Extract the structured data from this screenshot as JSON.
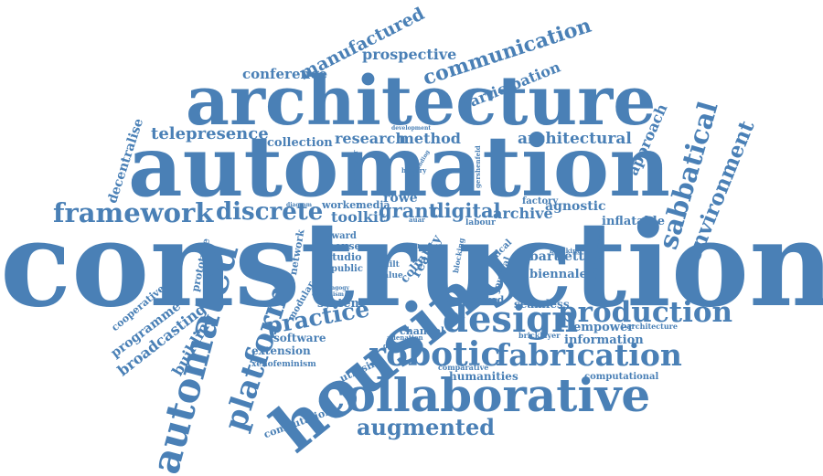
{
  "color": "#4a80b6",
  "words": [
    "construction",
    "automation",
    "architecture",
    "housing",
    "collaborative",
    "design",
    "robotic",
    "fabrication",
    "production",
    "automated",
    "framework",
    "platform",
    "discrete",
    "augmented",
    "practice",
    "sabbatical",
    "environment",
    "communication",
    "manufactured",
    "prospective",
    "participation",
    "conference",
    "telepresence",
    "research",
    "method",
    "architectural",
    "approach",
    "decentralise",
    "collection",
    "toolkit",
    "grant",
    "digital",
    "archive",
    "agnostic",
    "inflatable",
    "rowe",
    "bartlett",
    "biennale",
    "empower",
    "information",
    "humanities",
    "computational",
    "building",
    "broadcasting",
    "programme",
    "cooperative",
    "prototype",
    "system",
    "software",
    "extension",
    "xenofeminism",
    "computation",
    "utilising",
    "seamless",
    "centred",
    "channel",
    "reality",
    "colin",
    "journal",
    "ethical",
    "network",
    "modular",
    "studio",
    "public",
    "award",
    "house",
    "worker",
    "media",
    "factory",
    "labour",
    "consequence",
    "comparative",
    "bricklayer",
    "i-architecture",
    "alienation",
    "dymaxion",
    "value",
    "built",
    "blocking",
    "development",
    "buckminster",
    "gershenfeld",
    "history",
    "crowdfunding",
    "breaking",
    "pedagogy",
    "capitalism",
    "diagram",
    "auar",
    "school"
  ]
}
